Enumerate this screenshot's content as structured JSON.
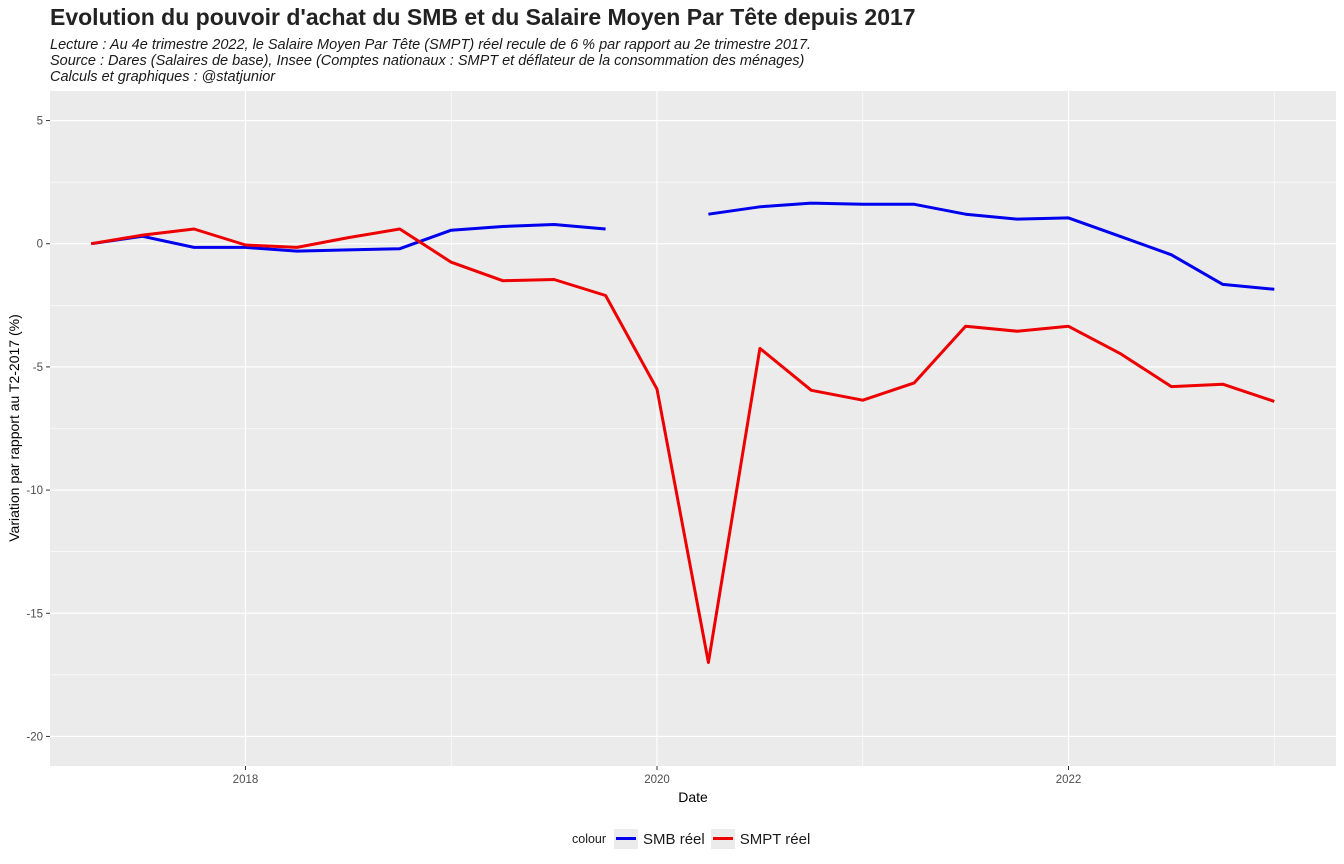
{
  "header": {
    "title": "Evolution du pouvoir d'achat du SMB et du Salaire Moyen Par Tête depuis 2017",
    "subtitle_lines": [
      "Lecture : Au 4e trimestre 2022, le Salaire Moyen Par Tête (SMPT) réel recule de 6 % par rapport au 2e trimestre 2017.",
      "Source : Dares (Salaires de base), Insee (Comptes nationaux : SMPT et déflateur de la consommation des ménages)",
      "Calculs et graphiques : @statjunior"
    ]
  },
  "chart_data": {
    "type": "line",
    "title": "Evolution du pouvoir d'achat du SMB et du Salaire Moyen Par Tête depuis 2017",
    "xlabel": "Date",
    "ylabel": "Variation par rapport au T2-2017 (%)",
    "xlim": [
      2017.05,
      2023.3
    ],
    "ylim": [
      -21.2,
      6.2
    ],
    "x_ticks": [
      {
        "value": 2018,
        "label": "2018"
      },
      {
        "value": 2020,
        "label": "2020"
      },
      {
        "value": 2022,
        "label": "2022"
      }
    ],
    "y_ticks": [
      {
        "value": 5,
        "label": "5"
      },
      {
        "value": 0,
        "label": "0"
      },
      {
        "value": -5,
        "label": "-5"
      },
      {
        "value": -10,
        "label": "-10"
      },
      {
        "value": -15,
        "label": "-15"
      },
      {
        "value": -20,
        "label": "-20"
      }
    ],
    "grid": true,
    "legend_title": "colour",
    "legend_position": "bottom",
    "series": [
      {
        "name": "SMB réel",
        "color": "#0000ee",
        "points": [
          [
            2017.25,
            0.0
          ],
          [
            2017.5,
            0.3
          ],
          [
            2017.75,
            -0.15
          ],
          [
            2018.0,
            -0.15
          ],
          [
            2018.25,
            -0.3
          ],
          [
            2018.5,
            -0.25
          ],
          [
            2018.75,
            -0.2
          ],
          [
            2019.0,
            0.55
          ],
          [
            2019.25,
            0.7
          ],
          [
            2019.5,
            0.78
          ],
          [
            2019.75,
            0.6
          ],
          null,
          [
            2020.25,
            1.2
          ],
          [
            2020.5,
            1.5
          ],
          [
            2020.75,
            1.65
          ],
          [
            2021.0,
            1.6
          ],
          [
            2021.25,
            1.6
          ],
          [
            2021.5,
            1.2
          ],
          [
            2021.75,
            1.0
          ],
          [
            2022.0,
            1.05
          ],
          [
            2022.25,
            0.3
          ],
          [
            2022.5,
            -0.45
          ],
          [
            2022.75,
            -1.65
          ],
          [
            2023.0,
            -1.85
          ]
        ]
      },
      {
        "name": "SMPT réel",
        "color": "#ee0000",
        "points": [
          [
            2017.25,
            0.0
          ],
          [
            2017.5,
            0.35
          ],
          [
            2017.75,
            0.6
          ],
          [
            2018.0,
            -0.05
          ],
          [
            2018.25,
            -0.15
          ],
          [
            2018.5,
            0.25
          ],
          [
            2018.75,
            0.6
          ],
          [
            2019.0,
            -0.75
          ],
          [
            2019.25,
            -1.5
          ],
          [
            2019.5,
            -1.45
          ],
          [
            2019.75,
            -2.1
          ],
          [
            2020.0,
            -5.9
          ],
          [
            2020.25,
            -17.0
          ],
          [
            2020.5,
            -4.25
          ],
          [
            2020.75,
            -5.95
          ],
          [
            2021.0,
            -6.35
          ],
          [
            2021.25,
            -5.65
          ],
          [
            2021.5,
            -3.35
          ],
          [
            2021.75,
            -3.55
          ],
          [
            2022.0,
            -3.35
          ],
          [
            2022.25,
            -4.45
          ],
          [
            2022.5,
            -5.8
          ],
          [
            2022.75,
            -5.7
          ],
          [
            2023.0,
            -6.4
          ]
        ]
      }
    ]
  }
}
